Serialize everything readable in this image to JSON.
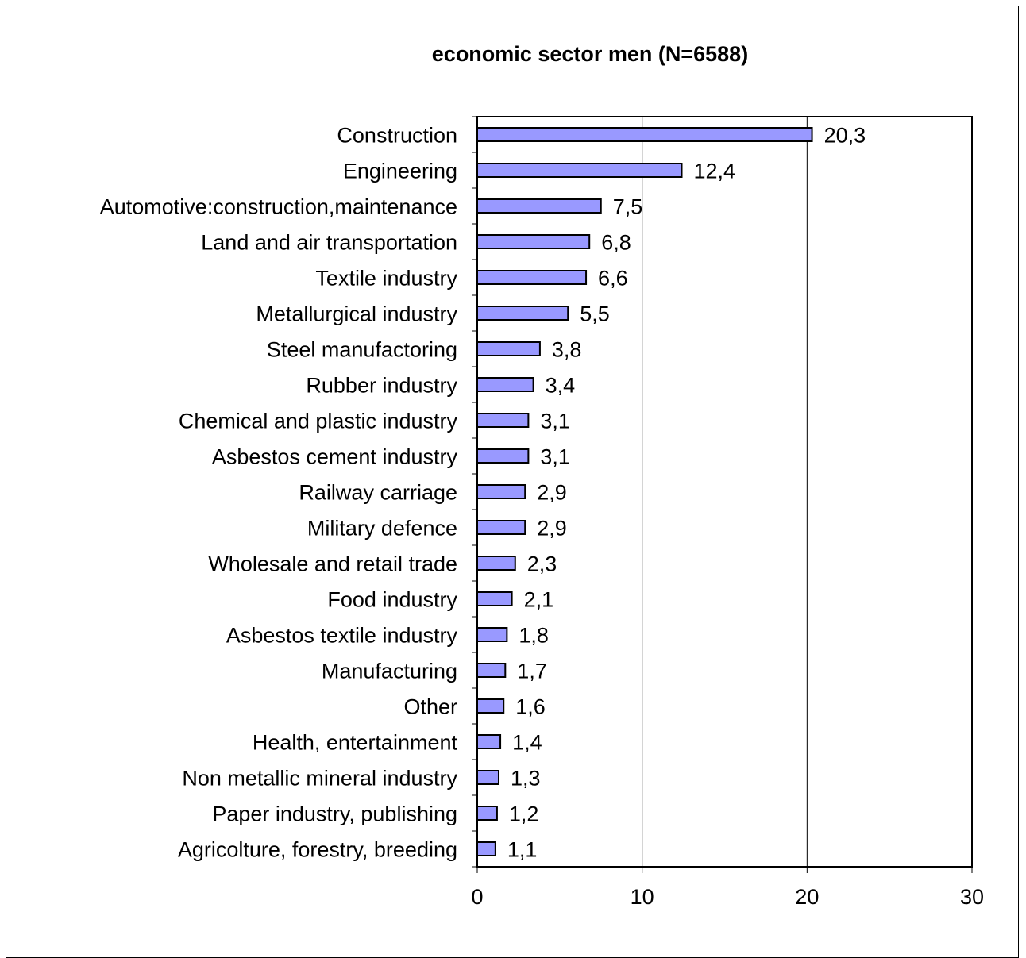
{
  "chart_data": {
    "type": "bar",
    "orientation": "horizontal",
    "title": "economic sector men (N=6588)",
    "categories": [
      "Construction",
      "Engineering",
      "Automotive:construction,maintenance",
      "Land and air transportation",
      "Textile industry",
      "Metallurgical industry",
      "Steel manufactoring",
      "Rubber industry",
      "Chemical and plastic industry",
      "Asbestos cement industry",
      "Railway carriage",
      "Military defence",
      "Wholesale and retail trade",
      "Food industry",
      "Asbestos textile industry",
      "Manufacturing",
      "Other",
      "Health, entertainment",
      "Non metallic mineral industry",
      "Paper industry, publishing",
      "Agricolture, forestry, breeding"
    ],
    "values": [
      20.3,
      12.4,
      7.5,
      6.8,
      6.6,
      5.5,
      3.8,
      3.4,
      3.1,
      3.1,
      2.9,
      2.9,
      2.3,
      2.1,
      1.8,
      1.7,
      1.6,
      1.4,
      1.3,
      1.2,
      1.1
    ],
    "value_labels": [
      "20,3",
      "12,4",
      "7,5",
      "6,8",
      "6,6",
      "5,5",
      "3,8",
      "3,4",
      "3,1",
      "3,1",
      "2,9",
      "2,9",
      "2,3",
      "2,1",
      "1,8",
      "1,7",
      "1,6",
      "1,4",
      "1,3",
      "1,2",
      "1,1"
    ],
    "xlim": [
      0,
      30
    ],
    "xticks": [
      0,
      10,
      20,
      30
    ],
    "xtick_labels": [
      "0",
      "10",
      "20",
      "30"
    ],
    "xlabel": "",
    "ylabel": "",
    "grid": "vertical major gridlines",
    "legend": "none",
    "colors": {
      "bar_fill": "#9999ff",
      "bar_stroke": "#000000",
      "text": "#000000",
      "background": "#ffffff"
    }
  }
}
